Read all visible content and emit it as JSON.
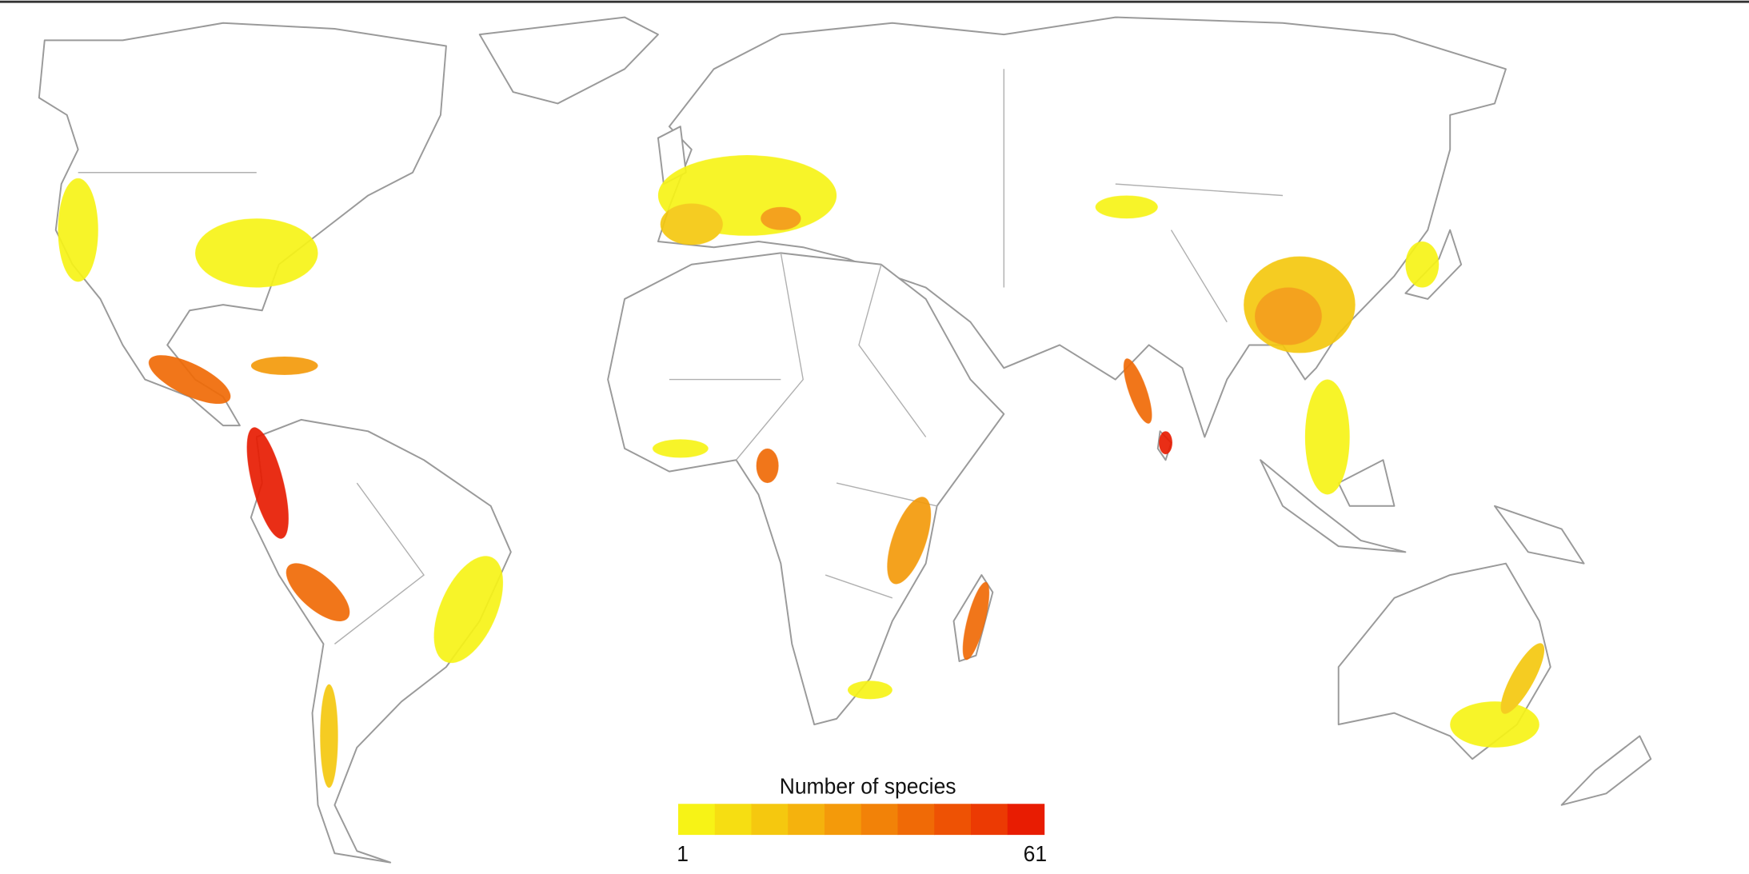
{
  "legend": {
    "title": "Number of species",
    "min": 1,
    "max": 61,
    "colors": [
      "#f7f316",
      "#f6de12",
      "#f5c80f",
      "#f5b20d",
      "#f49a0a",
      "#f28208",
      "#f06a06",
      "#ee5204",
      "#ec3a03",
      "#e81c02"
    ]
  }
}
